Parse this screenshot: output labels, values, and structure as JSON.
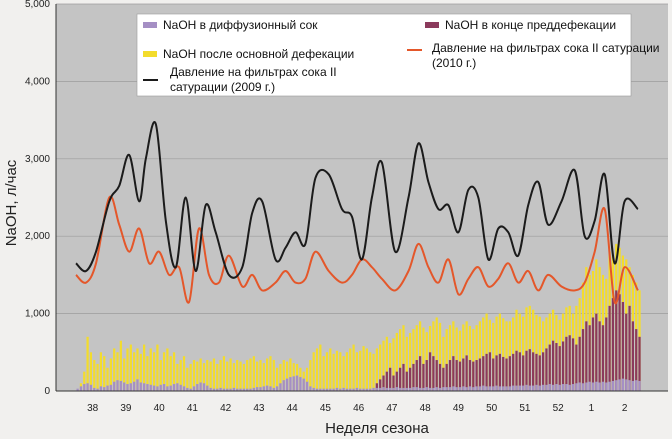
{
  "chart_data": {
    "type": "bar",
    "ylabel": "NaOH, л/час",
    "xlabel": "Неделя сезона",
    "ylim": [
      0,
      5000
    ],
    "yticks": [
      "0",
      "1,000",
      "2,000",
      "3,000",
      "4,000",
      "5,000"
    ],
    "ytick_values": [
      0,
      1000,
      2000,
      3000,
      4000,
      5000
    ],
    "week_labels": [
      "38",
      "39",
      "40",
      "41",
      "42",
      "43",
      "44",
      "45",
      "46",
      "47",
      "48",
      "49",
      "50",
      "51",
      "52",
      "1",
      "2"
    ],
    "bars_per_week": 10,
    "grid": true,
    "colors": {
      "diffusion": "#a58fc4",
      "defecation": "#f3dc2c",
      "predefecation": "#8b3a5c",
      "pressure_2009": "#1b1b1b",
      "pressure_2010": "#e4572a",
      "plot_bg": "#c4c4c4"
    },
    "legend": [
      {
        "key": "diffusion",
        "label": "NaOH в диффузионный сок",
        "kind": "bar"
      },
      {
        "key": "predefecation",
        "label": "NaOH в конце преддефекации",
        "kind": "bar"
      },
      {
        "key": "defecation",
        "label": "NaOH после основной дефекации",
        "kind": "bar"
      },
      {
        "key": "pressure_2010",
        "label": "Давление на фильтрах сока II сатурации (2010 г.)",
        "kind": "line"
      },
      {
        "key": "pressure_2009",
        "label": "Давление на фильтрах сока II сатурации (2009 г.)",
        "kind": "line"
      }
    ],
    "series": [
      {
        "key": "diffusion",
        "name": "NaOH в диффузионный сок",
        "values": [
          30,
          60,
          90,
          100,
          80,
          40,
          30,
          60,
          50,
          70,
          80,
          120,
          140,
          130,
          110,
          90,
          100,
          120,
          150,
          110,
          100,
          90,
          80,
          70,
          60,
          80,
          90,
          60,
          70,
          90,
          100,
          80,
          60,
          40,
          30,
          60,
          90,
          110,
          100,
          70,
          40,
          30,
          30,
          40,
          30,
          30,
          30,
          40,
          30,
          30,
          30,
          30,
          30,
          40,
          50,
          50,
          60,
          70,
          60,
          40,
          60,
          100,
          140,
          160,
          180,
          190,
          200,
          180,
          160,
          120,
          60,
          40,
          30,
          30,
          30,
          30,
          30,
          30,
          40,
          30,
          40,
          30,
          30,
          30,
          40,
          30,
          30,
          30,
          30,
          40,
          40,
          40,
          50,
          40,
          40,
          40,
          50,
          40,
          40,
          40,
          40,
          50,
          50,
          40,
          40,
          50,
          40,
          40,
          50,
          40,
          50,
          50,
          50,
          60,
          50,
          50,
          60,
          50,
          60,
          50,
          60,
          60,
          70,
          60,
          60,
          60,
          70,
          60,
          60,
          60,
          60,
          70,
          70,
          70,
          70,
          80,
          70,
          70,
          80,
          70,
          80,
          80,
          90,
          80,
          90,
          80,
          90,
          90,
          80,
          90,
          100,
          110,
          100,
          110,
          120,
          110,
          120,
          110,
          120,
          110,
          120,
          130,
          140,
          150,
          160,
          150,
          140,
          130,
          140,
          130
        ],
        "style": "bar"
      },
      {
        "key": "predefecation",
        "name": "NaOH в конце преддефекации",
        "values": [
          0,
          0,
          0,
          0,
          0,
          0,
          0,
          0,
          0,
          0,
          0,
          0,
          0,
          0,
          0,
          0,
          0,
          0,
          0,
          0,
          0,
          0,
          0,
          0,
          0,
          0,
          0,
          0,
          0,
          0,
          0,
          0,
          0,
          0,
          0,
          0,
          0,
          0,
          0,
          0,
          0,
          0,
          0,
          0,
          0,
          0,
          0,
          0,
          0,
          0,
          0,
          0,
          0,
          0,
          0,
          0,
          0,
          0,
          0,
          0,
          0,
          0,
          0,
          0,
          0,
          0,
          0,
          0,
          0,
          0,
          0,
          0,
          0,
          0,
          0,
          0,
          0,
          0,
          0,
          0,
          0,
          0,
          0,
          0,
          0,
          0,
          0,
          0,
          0,
          0,
          100,
          150,
          200,
          250,
          300,
          200,
          250,
          300,
          350,
          250,
          300,
          350,
          400,
          450,
          350,
          400,
          500,
          450,
          400,
          350,
          300,
          350,
          400,
          450,
          400,
          380,
          420,
          460,
          400,
          380,
          400,
          420,
          450,
          480,
          500,
          420,
          460,
          480,
          440,
          420,
          450,
          480,
          520,
          500,
          460,
          520,
          540,
          500,
          480,
          460,
          500,
          550,
          600,
          650,
          620,
          580,
          640,
          700,
          720,
          680,
          600,
          700,
          800,
          900,
          850,
          950,
          1000,
          900,
          850,
          950,
          1100,
          1200,
          1300,
          1250,
          1150,
          1000,
          1100,
          900,
          800,
          700
        ],
        "style": "bar"
      },
      {
        "key": "defecation",
        "name": "NaOH после основной дефекации",
        "values": [
          0,
          100,
          250,
          700,
          500,
          400,
          350,
          500,
          450,
          300,
          420,
          550,
          500,
          650,
          420,
          550,
          600,
          500,
          550,
          480,
          600,
          450,
          550,
          500,
          600,
          400,
          500,
          550,
          450,
          500,
          350,
          400,
          450,
          300,
          350,
          400,
          380,
          420,
          360,
          400,
          380,
          420,
          350,
          400,
          450,
          380,
          420,
          360,
          400,
          380,
          350,
          400,
          420,
          450,
          380,
          400,
          360,
          420,
          450,
          400,
          300,
          350,
          400,
          380,
          420,
          360,
          350,
          300,
          250,
          300,
          400,
          500,
          550,
          600,
          450,
          500,
          550,
          480,
          520,
          500,
          450,
          500,
          550,
          600,
          500,
          520,
          580,
          550,
          500,
          480,
          550,
          600,
          650,
          700,
          620,
          680,
          750,
          800,
          850,
          700,
          750,
          800,
          850,
          900,
          820,
          760,
          840,
          900,
          950,
          880,
          700,
          800,
          850,
          900,
          820,
          780,
          860,
          900,
          840,
          800,
          850,
          900,
          950,
          1000,
          920,
          880,
          960,
          1000,
          940,
          900,
          900,
          950,
          1050,
          1000,
          960,
          1080,
          1100,
          1050,
          980,
          960,
          900,
          950,
          1000,
          1050,
          980,
          920,
          1000,
          1080,
          1100,
          1000,
          1100,
          1200,
          1400,
          1600,
          1500,
          1550,
          1700,
          1600,
          1500,
          1450,
          1800,
          1750,
          1900,
          1850,
          1750,
          1700,
          1600,
          1500,
          1400,
          1300
        ],
        "style": "bar"
      },
      {
        "key": "pressure_2009",
        "name": "Давление на фильтрах сока II сатурации (2009 г.)",
        "x": [
          0,
          0.3,
          0.6,
          1.0,
          1.3,
          1.6,
          1.9,
          2.1,
          2.4,
          2.7,
          3.0,
          3.3,
          3.6,
          3.9,
          4.2,
          4.6,
          5.0,
          5.3,
          5.6,
          6.0,
          6.3,
          6.6,
          6.9,
          7.2,
          7.6,
          8.0,
          8.3,
          8.6,
          8.9,
          9.2,
          9.6,
          10.0,
          10.3,
          10.6,
          10.9,
          11.2,
          11.5,
          11.8,
          12.1,
          12.4,
          12.7,
          13.0,
          13.3,
          13.6,
          13.9,
          14.2,
          14.6,
          15.0,
          15.3,
          15.6,
          15.9,
          16.2,
          16.5,
          16.9
        ],
        "y": [
          1650,
          1550,
          1800,
          2450,
          2650,
          3050,
          2450,
          3000,
          3450,
          2200,
          1600,
          2500,
          1550,
          2400,
          2050,
          1500,
          1600,
          2300,
          2450,
          1700,
          1850,
          2050,
          1900,
          2750,
          2800,
          2350,
          2250,
          1700,
          2500,
          2950,
          1800,
          2500,
          3200,
          2700,
          2350,
          2400,
          2050,
          2600,
          2500,
          1700,
          2100,
          2050,
          1750,
          2400,
          2700,
          2150,
          2450,
          2850,
          2000,
          2200,
          2800,
          1650,
          2450,
          2350
        ],
        "style": "line"
      },
      {
        "key": "pressure_2010",
        "name": "Давление на фильтрах сока II сатурации (2010 г.)",
        "x": [
          0,
          0.3,
          0.6,
          1.0,
          1.3,
          1.6,
          1.9,
          2.2,
          2.5,
          2.8,
          3.1,
          3.4,
          3.7,
          4.0,
          4.3,
          4.6,
          5.0,
          5.3,
          5.6,
          6.0,
          6.3,
          6.6,
          6.9,
          7.2,
          7.6,
          8.0,
          8.3,
          8.6,
          8.9,
          9.2,
          9.6,
          10.0,
          10.3,
          10.6,
          10.9,
          11.2,
          11.5,
          11.8,
          12.1,
          12.4,
          12.7,
          13.0,
          13.3,
          13.6,
          13.9,
          14.2,
          14.6,
          15.0,
          15.3,
          15.6,
          15.9,
          16.2,
          16.5,
          16.9
        ],
        "y": [
          1500,
          1400,
          1650,
          2500,
          2150,
          1800,
          2100,
          1650,
          1800,
          1500,
          1600,
          1150,
          2100,
          1500,
          1400,
          1750,
          1350,
          1500,
          1300,
          1400,
          1550,
          1400,
          1450,
          1800,
          1550,
          1400,
          1500,
          1700,
          1600,
          1450,
          1300,
          1550,
          1900,
          1600,
          1400,
          1700,
          1250,
          1450,
          1600,
          1350,
          1450,
          1650,
          1400,
          1550,
          1300,
          1500,
          1350,
          1300,
          1400,
          1800,
          2350,
          1150,
          1600,
          1300
        ],
        "style": "line"
      }
    ]
  }
}
